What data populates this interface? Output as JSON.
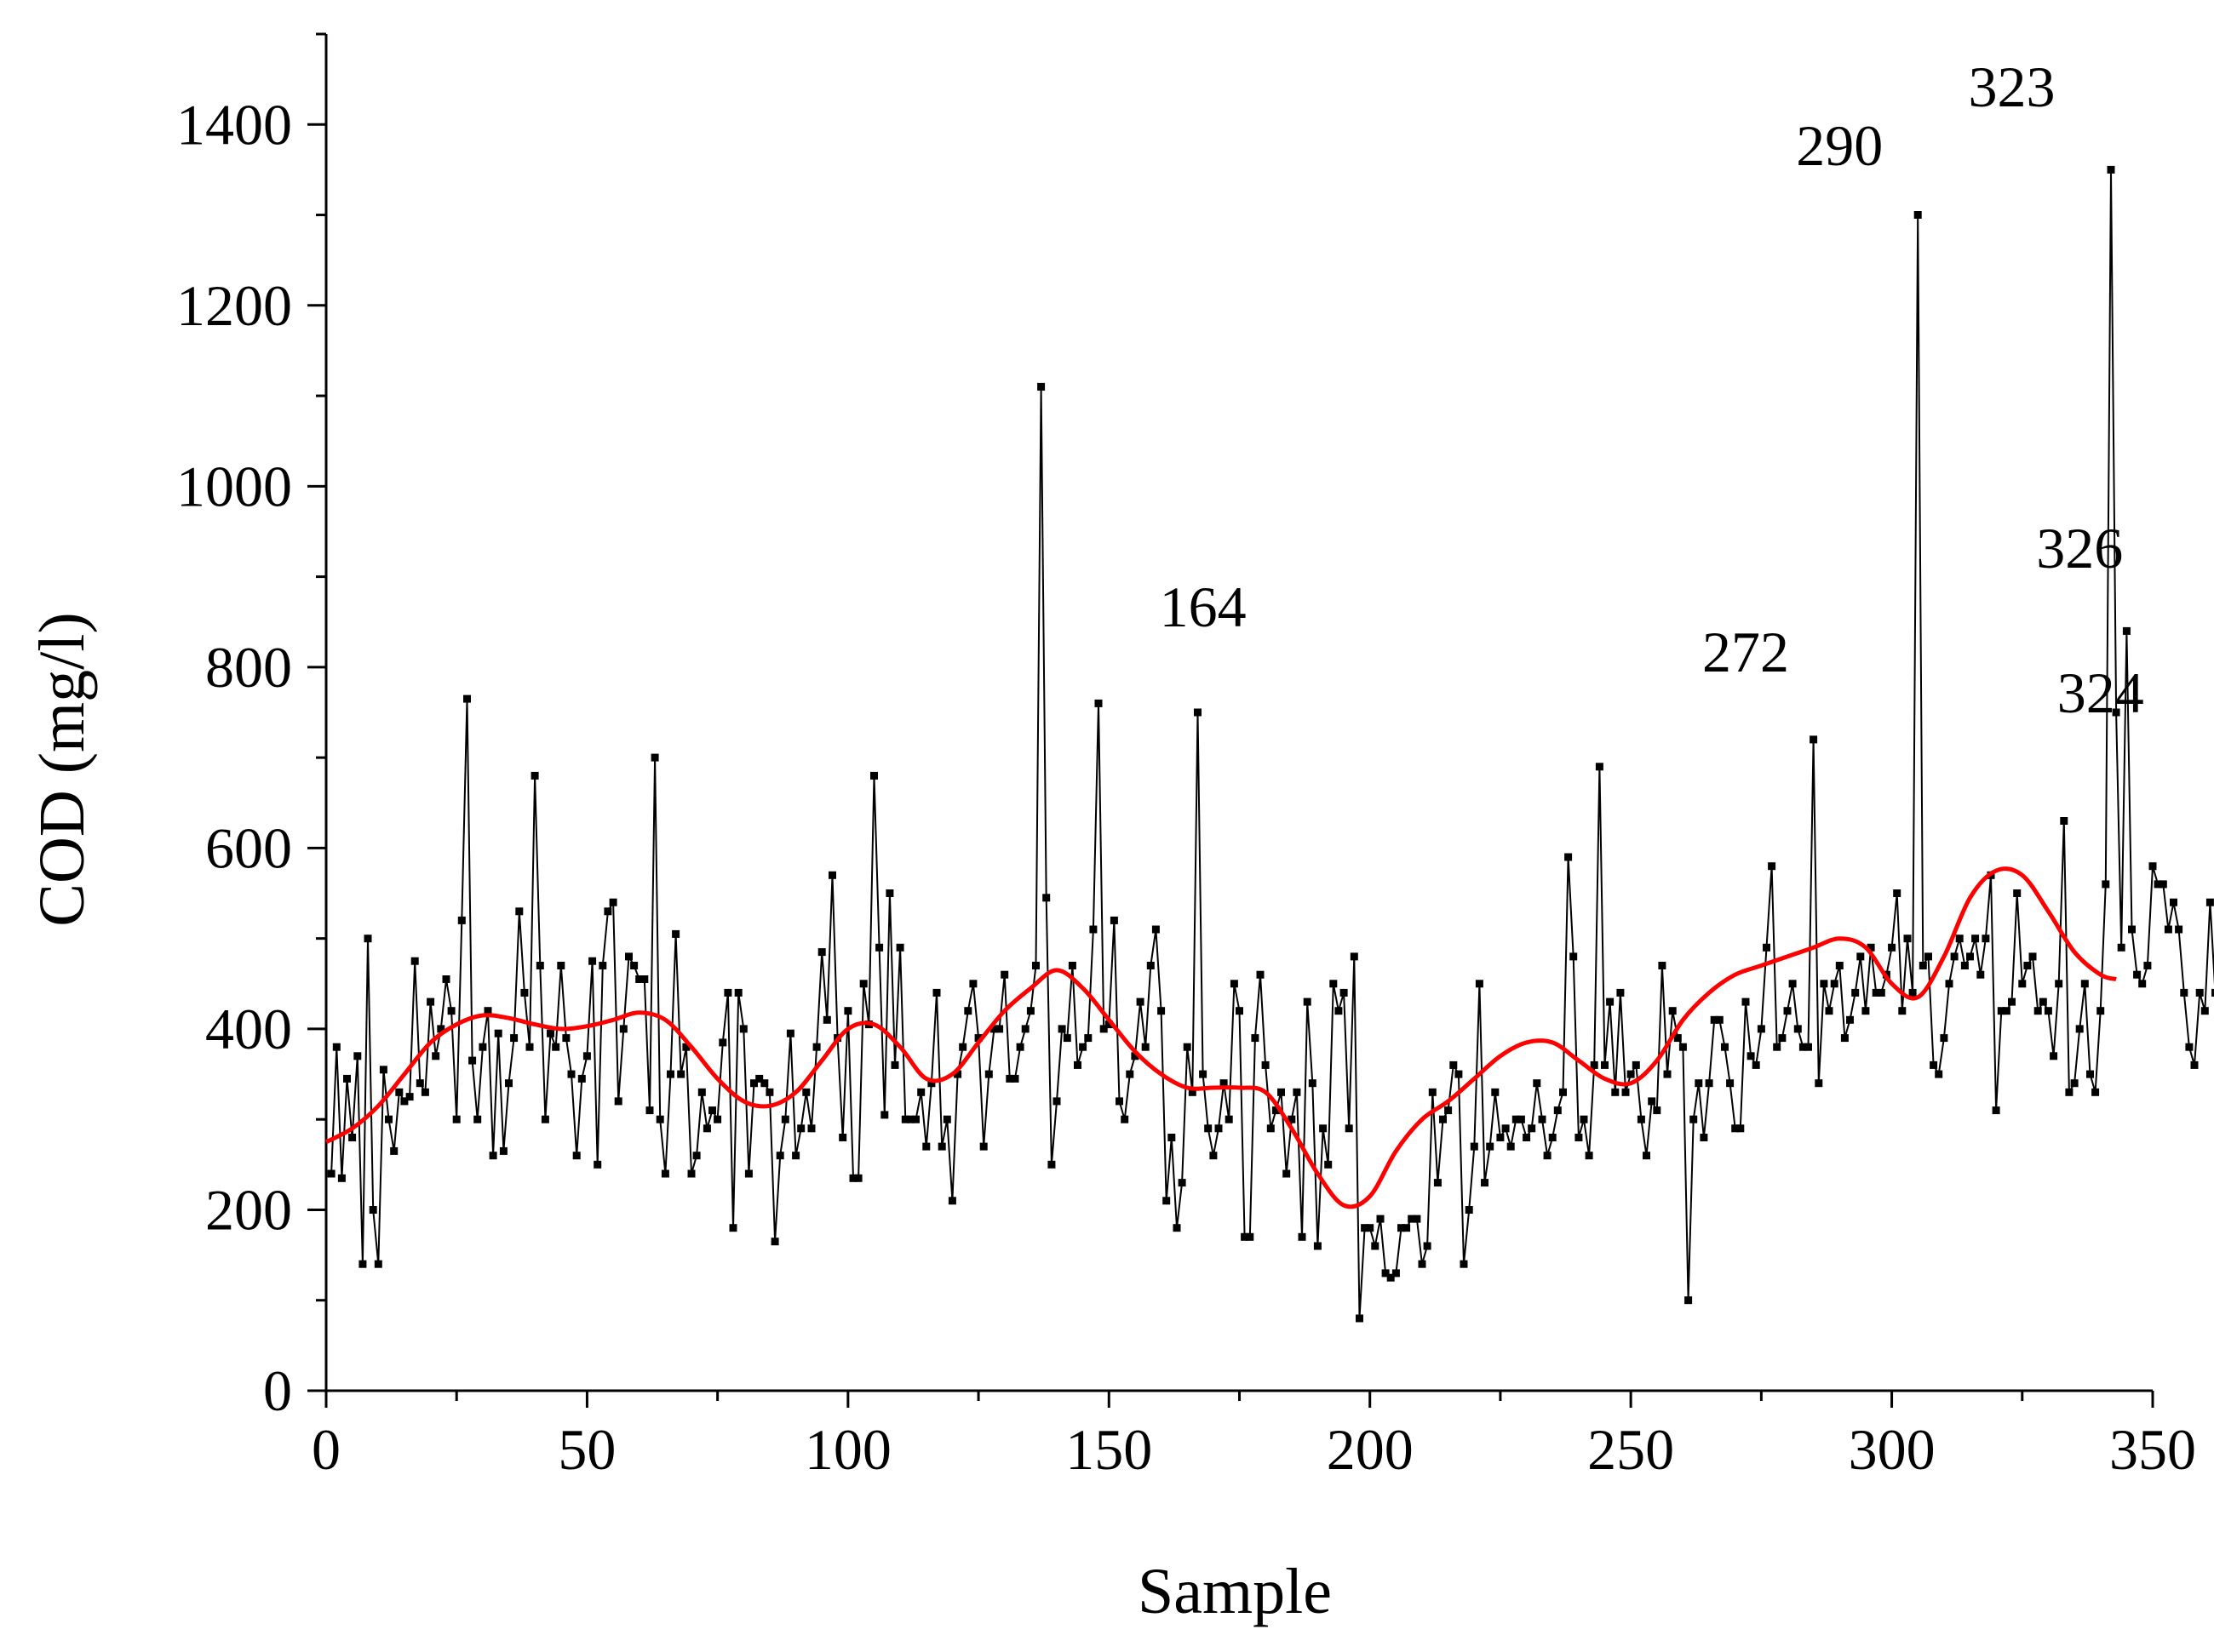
{
  "chart_data": {
    "type": "line",
    "title": "",
    "xlabel": "Sample",
    "ylabel": "COD (mg/l)",
    "xlim": [
      0,
      350
    ],
    "ylim": [
      0,
      1500
    ],
    "x_ticks": [
      0,
      50,
      100,
      150,
      200,
      250,
      300,
      350
    ],
    "y_ticks": [
      0,
      200,
      400,
      600,
      800,
      1000,
      1200,
      1400
    ],
    "x_tick_labels": [
      "0",
      "50",
      "100",
      "150",
      "200",
      "250",
      "300",
      "350"
    ],
    "y_tick_labels": [
      "0",
      "200",
      "400",
      "600",
      "800",
      "1000",
      "1200",
      "1400"
    ],
    "grid": false,
    "legend": "none",
    "series": [
      {
        "color": "#000000",
        "style": "line+square-markers",
        "x_start": 1,
        "x_step": 1,
        "values": [
          240,
          380,
          235,
          345,
          280,
          370,
          140,
          500,
          200,
          140,
          355,
          300,
          265,
          330,
          320,
          325,
          475,
          340,
          330,
          430,
          370,
          400,
          455,
          420,
          300,
          520,
          765,
          365,
          300,
          380,
          420,
          260,
          395,
          265,
          340,
          390,
          530,
          440,
          380,
          680,
          470,
          300,
          395,
          380,
          470,
          390,
          350,
          260,
          345,
          370,
          475,
          250,
          470,
          530,
          540,
          320,
          400,
          480,
          470,
          455,
          455,
          310,
          700,
          300,
          240,
          350,
          505,
          350,
          380,
          240,
          260,
          330,
          290,
          310,
          300,
          385,
          440,
          180,
          440,
          400,
          240,
          340,
          345,
          340,
          330,
          165,
          260,
          300,
          395,
          260,
          290,
          330,
          290,
          380,
          485,
          410,
          570,
          390,
          280,
          420,
          235,
          235,
          450,
          405,
          680,
          490,
          305,
          550,
          360,
          490,
          300,
          300,
          300,
          330,
          270,
          340,
          440,
          270,
          300,
          210,
          350,
          380,
          420,
          450,
          390,
          270,
          350,
          400,
          400,
          460,
          345,
          345,
          380,
          400,
          420,
          470,
          1110,
          545,
          250,
          320,
          400,
          390,
          470,
          360,
          380,
          390,
          510,
          760,
          400,
          405,
          520,
          320,
          300,
          350,
          370,
          430,
          380,
          470,
          510,
          420,
          210,
          280,
          180,
          230,
          380,
          330,
          750,
          350,
          290,
          260,
          290,
          340,
          300,
          450,
          420,
          170,
          170,
          390,
          460,
          360,
          290,
          310,
          330,
          240,
          300,
          330,
          170,
          430,
          340,
          160,
          290,
          250,
          450,
          420,
          440,
          290,
          480,
          80,
          180,
          180,
          160,
          190,
          130,
          125,
          130,
          180,
          180,
          190,
          190,
          140,
          160,
          330,
          230,
          300,
          310,
          360,
          350,
          140,
          200,
          270,
          450,
          230,
          270,
          330,
          280,
          290,
          270,
          300,
          300,
          280,
          290,
          340,
          300,
          260,
          280,
          310,
          330,
          590,
          480,
          280,
          300,
          260,
          360,
          690,
          360,
          430,
          330,
          440,
          330,
          350,
          360,
          300,
          260,
          320,
          310,
          470,
          350,
          420,
          390,
          380,
          100,
          300,
          340,
          280,
          340,
          410,
          410,
          380,
          340,
          290,
          290,
          430,
          370,
          360,
          400,
          490,
          580,
          380,
          390,
          420,
          450,
          400,
          380,
          380,
          720,
          340,
          450,
          420,
          450,
          470,
          390,
          410,
          440,
          480,
          420,
          490,
          440,
          440,
          460,
          490,
          550,
          420,
          500,
          440,
          1300,
          470,
          480,
          360,
          350,
          390,
          450,
          480,
          500,
          470,
          480,
          500,
          460,
          500,
          570,
          310,
          420,
          420,
          430,
          550,
          450,
          470,
          480,
          420,
          430,
          420,
          370,
          450,
          630,
          330,
          340,
          400,
          450,
          350,
          330,
          420,
          560,
          1350,
          750,
          490,
          840,
          510,
          460,
          450,
          470,
          580,
          560,
          560,
          510,
          540,
          510,
          440,
          380,
          360,
          440,
          420,
          540,
          440
        ]
      },
      {
        "color": "#ff0000",
        "style": "smooth",
        "x": [
          0,
          5,
          10,
          15,
          20,
          25,
          30,
          35,
          40,
          45,
          50,
          55,
          60,
          65,
          70,
          75,
          80,
          85,
          90,
          95,
          100,
          105,
          110,
          115,
          120,
          125,
          130,
          135,
          140,
          145,
          150,
          155,
          160,
          165,
          170,
          175,
          180,
          185,
          190,
          195,
          200,
          205,
          210,
          215,
          220,
          225,
          230,
          235,
          240,
          245,
          250,
          255,
          260,
          265,
          270,
          275,
          280,
          285,
          290,
          295,
          300,
          305,
          310,
          315,
          320,
          325,
          330,
          335,
          340,
          343
        ],
        "values": [
          275,
          290,
          315,
          350,
          385,
          405,
          415,
          412,
          405,
          400,
          403,
          410,
          418,
          410,
          380,
          345,
          320,
          315,
          330,
          365,
          400,
          405,
          380,
          345,
          350,
          385,
          420,
          445,
          465,
          445,
          410,
          375,
          350,
          335,
          335,
          335,
          330,
          290,
          240,
          205,
          215,
          265,
          300,
          320,
          345,
          370,
          385,
          385,
          365,
          345,
          340,
          365,
          410,
          440,
          460,
          470,
          480,
          490,
          500,
          490,
          450,
          435,
          480,
          545,
          575,
          570,
          530,
          485,
          460,
          455
        ]
      }
    ],
    "annotations": [
      {
        "text": "164",
        "x": 168,
        "y": 845
      },
      {
        "text": "272",
        "x": 272,
        "y": 795
      },
      {
        "text": "290",
        "x": 290,
        "y": 1355
      },
      {
        "text": "323",
        "x": 323,
        "y": 1420
      },
      {
        "text": "326",
        "x": 336,
        "y": 910
      },
      {
        "text": "324",
        "x": 340,
        "y": 750
      }
    ]
  }
}
